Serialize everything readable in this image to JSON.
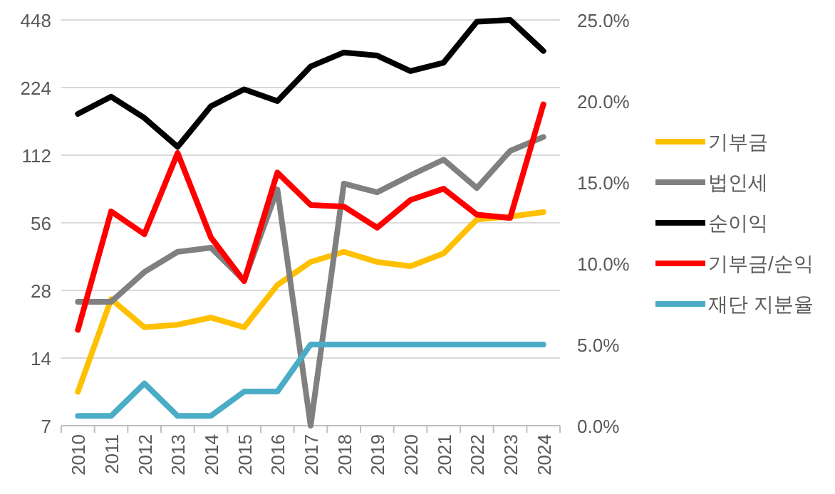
{
  "chart_data": {
    "type": "line",
    "categories": [
      "2010",
      "2011",
      "2012",
      "2013",
      "2014",
      "2015",
      "2016",
      "2017",
      "2018",
      "2019",
      "2020",
      "2021",
      "2022",
      "2023",
      "2024"
    ],
    "series": [
      {
        "name": "기부금",
        "color": "#ffc000",
        "values": [
          9.9,
          25.6,
          19.2,
          19.7,
          21.2,
          19.2,
          29.6,
          37.5,
          41.6,
          37.5,
          35.9,
          40.9,
          58,
          59.7,
          62.5
        ]
      },
      {
        "name": "법인세",
        "color": "#808080",
        "values": [
          24.9,
          24.9,
          33.8,
          41.6,
          43.4,
          31,
          78.8,
          7,
          83.7,
          76.6,
          91,
          107,
          80,
          117,
          135
        ]
      },
      {
        "name": "순이익",
        "color": "#000000",
        "values": [
          171,
          204,
          164,
          122,
          185,
          220,
          195,
          278,
          321,
          311,
          265,
          289,
          440,
          448,
          326
        ]
      },
      {
        "name": "기부금/순익",
        "color": "#ff0000",
        "axis": "y2",
        "values": [
          5.9,
          13.2,
          11.8,
          16.8,
          11.6,
          8.9,
          15.6,
          13.6,
          13.5,
          12.2,
          13.9,
          14.6,
          13.0,
          12.8,
          19.8
        ]
      },
      {
        "name": "재단 지분율",
        "color": "#4bacc6",
        "axis": "y2",
        "values": [
          0.6,
          0.6,
          2.6,
          0.6,
          0.6,
          2.1,
          2.1,
          5.0,
          5.0,
          5.0,
          5.0,
          5.0,
          5.0,
          5.0,
          5.0
        ]
      }
    ],
    "log": "y",
    "ylim": [
      7,
      448
    ],
    "yticks": [
      7,
      14,
      28,
      56,
      112,
      224,
      448
    ],
    "y2lim": [
      0,
      25
    ],
    "y2ticks": [
      {
        "value": 0,
        "label": "0.0%"
      },
      {
        "value": 5,
        "label": "5.0%"
      },
      {
        "value": 10,
        "label": "10.0%"
      },
      {
        "value": 15,
        "label": "15.0%"
      },
      {
        "value": 20,
        "label": "20.0%"
      },
      {
        "value": 25,
        "label": "25.0%"
      }
    ],
    "grid": "y",
    "legend": "right",
    "marker": "none",
    "line_style": "solid"
  }
}
